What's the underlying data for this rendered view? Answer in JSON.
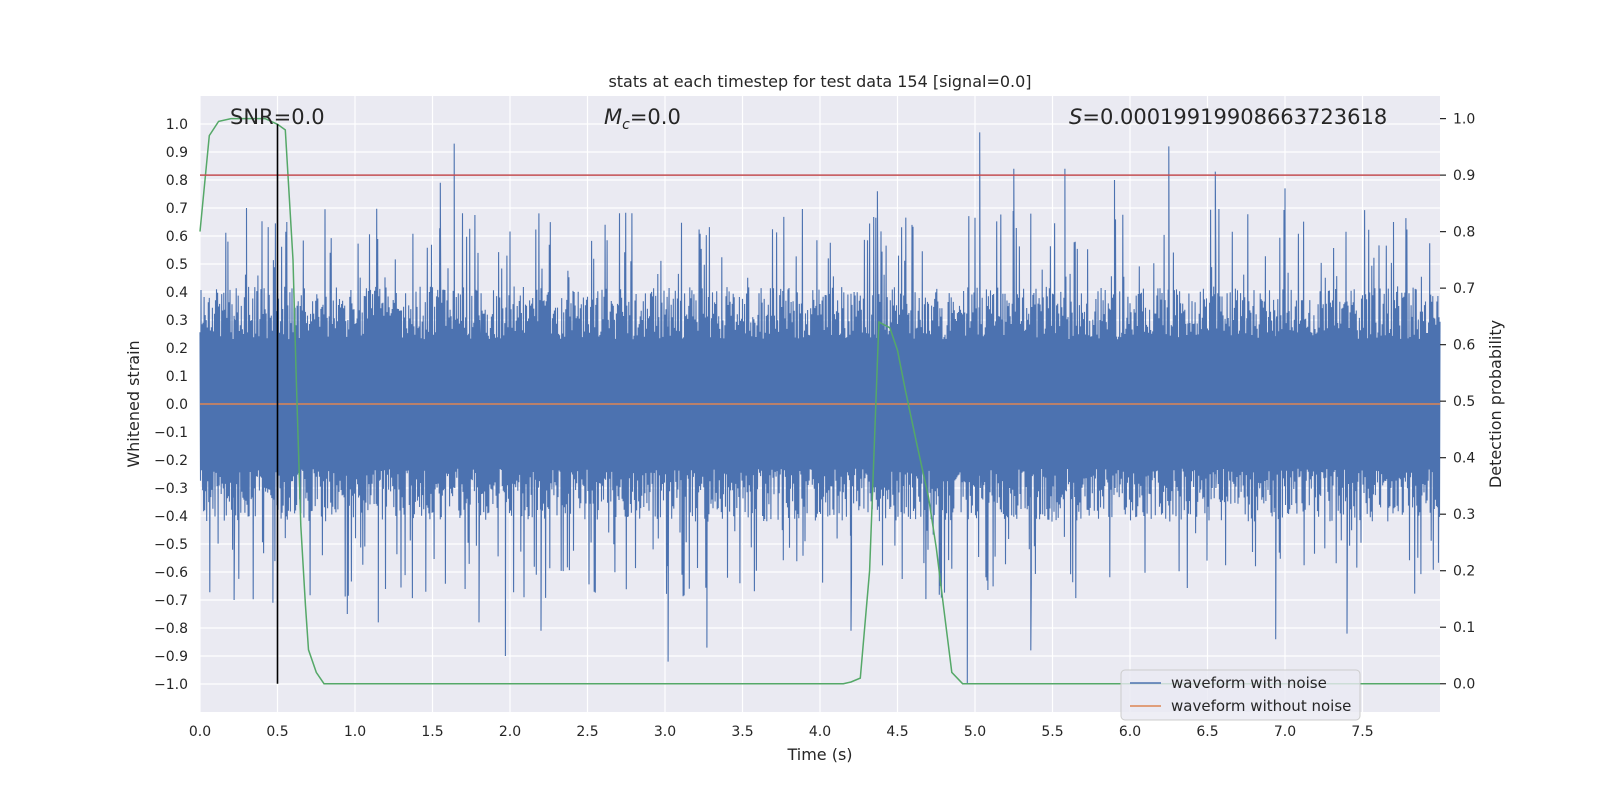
{
  "chart_data": {
    "type": "line",
    "title": "stats at each timestep for test data 154 [signal=0.0]",
    "xlabel": "Time (s)",
    "ylabel": "Whitened strain",
    "ylabel_right": "Detection probability",
    "xlim": [
      0,
      8.0
    ],
    "ylim": [
      -1.1,
      1.1
    ],
    "ylim_right": [
      -0.05,
      1.04
    ],
    "x_ticks": [
      0.0,
      0.5,
      1.0,
      1.5,
      2.0,
      2.5,
      3.0,
      3.5,
      4.0,
      4.5,
      5.0,
      5.5,
      6.0,
      6.5,
      7.0,
      7.5
    ],
    "x_tick_labels": [
      "0.0",
      "0.5",
      "1.0",
      "1.5",
      "2.0",
      "2.5",
      "3.0",
      "3.5",
      "4.0",
      "4.5",
      "5.0",
      "5.5",
      "6.0",
      "6.5",
      "7.0",
      "7.5"
    ],
    "y_ticks": [
      1.0,
      0.9,
      0.8,
      0.7,
      0.6,
      0.5,
      0.4,
      0.3,
      0.2,
      0.1,
      0.0,
      -0.1,
      -0.2,
      -0.3,
      -0.4,
      -0.5,
      -0.6,
      -0.7,
      -0.8,
      -0.9,
      -1.0
    ],
    "y_tick_labels": [
      "1.0",
      "0.9",
      "0.8",
      "0.7",
      "0.6",
      "0.5",
      "0.4",
      "0.3",
      "0.2",
      "0.1",
      "0.0",
      "−0.1",
      "−0.2",
      "−0.3",
      "−0.4",
      "−0.5",
      "−0.6",
      "−0.7",
      "−0.8",
      "−0.9",
      "−1.0"
    ],
    "y_right_ticks": [
      1.0,
      0.9,
      0.8,
      0.7,
      0.6,
      0.5,
      0.4,
      0.3,
      0.2,
      0.1,
      0.0
    ],
    "y_right_tick_labels": [
      "1.0",
      "0.9",
      "0.8",
      "0.7",
      "0.6",
      "0.5",
      "0.4",
      "0.3",
      "0.2",
      "0.1",
      "0.0"
    ],
    "annotations": {
      "snr": "SNR=0.0",
      "mc_symbol": "M",
      "mc_sub": "c",
      "mc_value": "=0.0",
      "s_symbol": "S",
      "s_value": "=0.00019919908663723618"
    },
    "series": [
      {
        "name": "waveform with noise",
        "color": "#4c72b0",
        "description": "dense whitened noise, mostly within ±0.45 with spikes to about ±0.95",
        "envelope_typical": 0.42,
        "spikes": [
          {
            "t": 0.18,
            "v": 0.58
          },
          {
            "t": 0.22,
            "v": -0.7
          },
          {
            "t": 0.3,
            "v": 0.7
          },
          {
            "t": 0.47,
            "v": -0.71
          },
          {
            "t": 0.56,
            "v": 0.65
          },
          {
            "t": 0.95,
            "v": -0.75
          },
          {
            "t": 1.15,
            "v": -0.78
          },
          {
            "t": 1.55,
            "v": 0.79
          },
          {
            "t": 1.64,
            "v": 0.93
          },
          {
            "t": 1.8,
            "v": -0.78
          },
          {
            "t": 1.97,
            "v": -0.9
          },
          {
            "t": 2.2,
            "v": -0.81
          },
          {
            "t": 3.02,
            "v": -0.92
          },
          {
            "t": 3.27,
            "v": -0.87
          },
          {
            "t": 4.2,
            "v": -0.81
          },
          {
            "t": 4.37,
            "v": 0.76
          },
          {
            "t": 4.95,
            "v": -1.0
          },
          {
            "t": 5.03,
            "v": 0.97
          },
          {
            "t": 5.25,
            "v": 0.84
          },
          {
            "t": 5.36,
            "v": -0.88
          },
          {
            "t": 5.58,
            "v": 0.84
          },
          {
            "t": 5.9,
            "v": 0.8
          },
          {
            "t": 6.25,
            "v": 0.92
          },
          {
            "t": 6.55,
            "v": 0.83
          },
          {
            "t": 6.94,
            "v": -0.84
          },
          {
            "t": 7.0,
            "v": 0.77
          },
          {
            "t": 7.4,
            "v": -0.82
          },
          {
            "t": 7.7,
            "v": 0.65
          }
        ]
      },
      {
        "name": "waveform without noise",
        "color": "#dd8452",
        "x": [
          0.0,
          8.0
        ],
        "y": [
          0.0,
          0.0
        ]
      },
      {
        "name": "detection probability",
        "color": "#55a868",
        "axis": "right",
        "x": [
          0.0,
          0.06,
          0.12,
          0.2,
          0.3,
          0.42,
          0.5,
          0.55,
          0.6,
          0.62,
          0.65,
          0.68,
          0.7,
          0.75,
          0.8,
          1.0,
          2.0,
          3.0,
          4.0,
          4.15,
          4.2,
          4.26,
          4.32,
          4.38,
          4.45,
          4.5,
          4.55,
          4.62,
          4.7,
          4.75,
          4.8,
          4.85,
          4.92,
          5.0,
          6.0,
          7.0,
          8.0
        ],
        "y": [
          0.8,
          0.97,
          0.995,
          1.0,
          1.0,
          1.0,
          0.99,
          0.98,
          0.75,
          0.55,
          0.28,
          0.14,
          0.06,
          0.02,
          0.0,
          0.0,
          0.0,
          0.0,
          0.0,
          0.0,
          0.003,
          0.01,
          0.2,
          0.64,
          0.63,
          0.59,
          0.52,
          0.43,
          0.33,
          0.24,
          0.13,
          0.02,
          0.0,
          0.0,
          0.0,
          0.0,
          0.0
        ]
      },
      {
        "name": "threshold",
        "color": "#c44e52",
        "axis": "right",
        "x": [
          0.0,
          8.0
        ],
        "y": [
          0.9,
          0.9
        ]
      },
      {
        "name": "marker",
        "color": "#000000",
        "axis": "right",
        "x": [
          0.5,
          0.5
        ],
        "y": [
          0.0,
          0.99
        ]
      }
    ],
    "legend": {
      "placement": "lower-right",
      "entries": [
        {
          "label": "waveform with noise",
          "color": "#4c72b0"
        },
        {
          "label": "waveform without noise",
          "color": "#dd8452"
        }
      ]
    },
    "colors": {
      "plot_background": "#eaeaf2",
      "grid": "#ffffff",
      "text": "#262626"
    }
  }
}
